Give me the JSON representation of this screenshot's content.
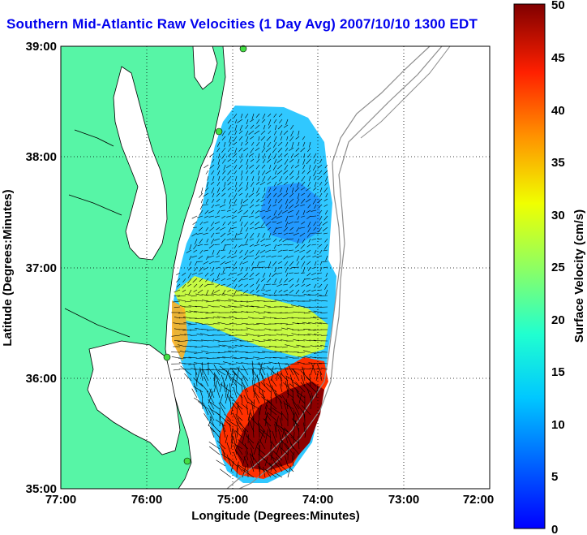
{
  "title": "Southern Mid-Atlantic Raw Velocities (1 Day Avg) 2007/10/10 1300 EDT",
  "axes": {
    "xlabel": "Longitude (Degrees:Minutes)",
    "ylabel": "Latitude (Degrees:Minutes)",
    "x_ticks": [
      "77:00",
      "76:00",
      "75:00",
      "74:00",
      "73:00",
      "72:00"
    ],
    "y_ticks": [
      "39:00",
      "38:00",
      "37:00",
      "36:00",
      "35:00"
    ],
    "grid": "dotted"
  },
  "colorbar": {
    "label": "Surface Velocity (cm/s)",
    "ticks": [
      "50",
      "45",
      "40",
      "35",
      "30",
      "25",
      "20",
      "15",
      "10",
      "5",
      "0"
    ],
    "range": [
      0,
      50
    ]
  },
  "colors": {
    "land": "#57f5a6",
    "coast": "#000000",
    "bathymetry": "#8c8c8c",
    "station": "#44dd44",
    "title": "#0000ee"
  }
}
